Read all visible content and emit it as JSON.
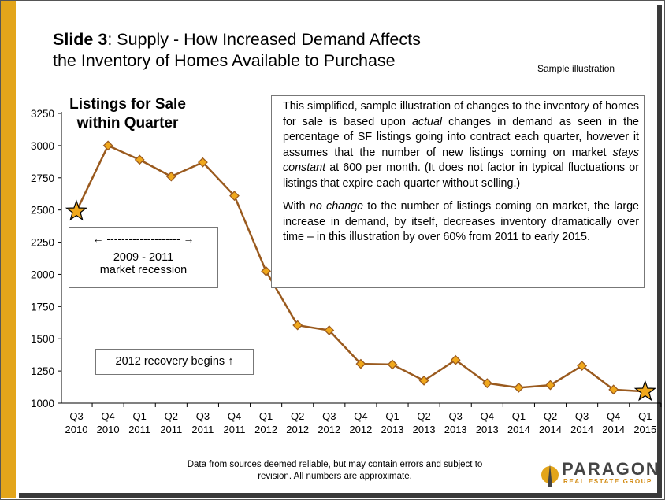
{
  "slide": {
    "title_bold": "Slide 3",
    "title_rest": ": Supply - How Increased Demand Affects",
    "title_line2": "the Inventory of Homes Available to Purchase",
    "sample_label": "Sample illustration"
  },
  "textbox": {
    "p1_a": "This simplified, sample illustration of changes to the inventory of homes for sale is based upon ",
    "p1_actual": "actual",
    "p1_b": " changes in demand as seen in the percentage of SF listings going into contract each quarter, however it assumes that the number of new listings coming on market ",
    "p1_stays": "stays constant",
    "p1_c": " at 600 per month. (It does not factor in typical fluctuations or listings that expire each quarter without selling.)",
    "p2_a": "With ",
    "p2_nochange": "no change",
    "p2_b": " to the number of listings coming on market, the large increase in demand, by itself, decreases inventory dramatically over time – in this illustration by over 60% from 2011 to early 2015."
  },
  "recession_box": {
    "arrow_left": "←",
    "dashes": " -------------------- ",
    "arrow_right": "→",
    "line1": "2009  - 2011",
    "line2": "market recession"
  },
  "recovery_box": {
    "label": "2012 recovery begins ↑"
  },
  "footer": {
    "line1": "Data from sources deemed reliable, but may contain errors and subject to",
    "line2": "revision.  All numbers are approximate."
  },
  "logo": {
    "name": "PARAGON",
    "tagline": "REAL ESTATE GROUP"
  },
  "colors": {
    "sidebar": "#e3a51a",
    "line": "#9a5a1e",
    "marker": "#f0a81c",
    "marker_edge": "#9a5a1e",
    "star": "#f0a81c"
  },
  "chart_data": {
    "type": "line",
    "title": "Listings for Sale within Quarter",
    "title_line1": "Listings for Sale",
    "title_line2": "within Quarter",
    "xlabel": "",
    "ylabel": "",
    "ylim": [
      1000,
      3250
    ],
    "yticks": [
      1000,
      1250,
      1500,
      1750,
      2000,
      2250,
      2500,
      2750,
      3000,
      3250
    ],
    "categories": [
      {
        "q": "Q3",
        "y": "2010"
      },
      {
        "q": "Q4",
        "y": "2010"
      },
      {
        "q": "Q1",
        "y": "2011"
      },
      {
        "q": "Q2",
        "y": "2011"
      },
      {
        "q": "Q3",
        "y": "2011"
      },
      {
        "q": "Q4",
        "y": "2011"
      },
      {
        "q": "Q1",
        "y": "2012"
      },
      {
        "q": "Q2",
        "y": "2012"
      },
      {
        "q": "Q3",
        "y": "2012"
      },
      {
        "q": "Q4",
        "y": "2012"
      },
      {
        "q": "Q1",
        "y": "2013"
      },
      {
        "q": "Q2",
        "y": "2013"
      },
      {
        "q": "Q3",
        "y": "2013"
      },
      {
        "q": "Q4",
        "y": "2013"
      },
      {
        "q": "Q1",
        "y": "2014"
      },
      {
        "q": "Q2",
        "y": "2014"
      },
      {
        "q": "Q3",
        "y": "2014"
      },
      {
        "q": "Q4",
        "y": "2014"
      },
      {
        "q": "Q1",
        "y": "2015"
      }
    ],
    "values": [
      2490,
      3000,
      2890,
      2760,
      2870,
      2610,
      2025,
      1605,
      1565,
      1305,
      1300,
      1175,
      1335,
      1155,
      1120,
      1140,
      1290,
      1105,
      1090
    ],
    "markers": [
      "star",
      "diamond",
      "diamond",
      "diamond",
      "diamond",
      "diamond",
      "diamond",
      "diamond",
      "diamond",
      "diamond",
      "diamond",
      "diamond",
      "diamond",
      "diamond",
      "diamond",
      "diamond",
      "diamond",
      "diamond",
      "star"
    ],
    "grid": false,
    "legend": "none"
  }
}
